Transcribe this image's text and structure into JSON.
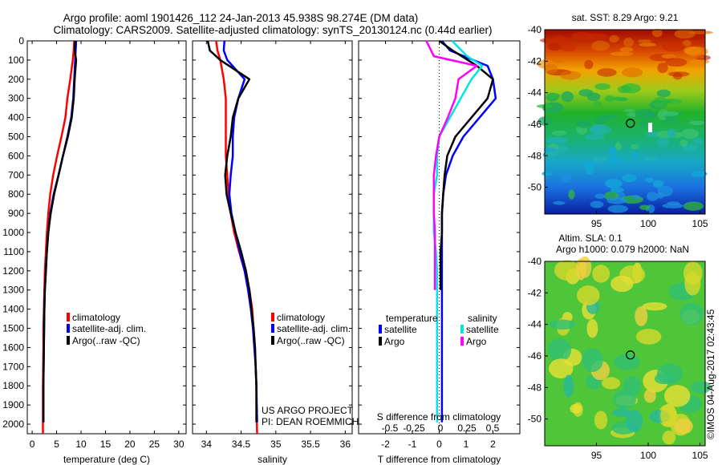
{
  "title": {
    "line1": "Argo profile: aoml 1901426_112 24-Jan-2013 45.938S 98.274E (DM data)",
    "line2": "Climatology: CARS2009. Satellite-adjusted climatology: synTS_20130124.nc (0.44d earlier)"
  },
  "depth_ticks": [
    0,
    100,
    200,
    300,
    400,
    500,
    600,
    700,
    800,
    900,
    1000,
    1100,
    1200,
    1300,
    1400,
    1500,
    1600,
    1700,
    1800,
    1900,
    2000
  ],
  "colors": {
    "climatology": "#ff0000",
    "satellite": "#0000ff",
    "argo": "#000000",
    "sat_salinity": "#00e5e5",
    "argo_salinity": "#ff00ff"
  },
  "chart_data": [
    {
      "id": "temperature",
      "type": "line",
      "xlabel": "temperature (deg C)",
      "xlim": [
        -1,
        31.5
      ],
      "ylim": [
        2050,
        0
      ],
      "xticks": [
        0,
        5,
        10,
        15,
        20,
        25,
        30
      ],
      "xtick_labels": [
        "0",
        "5",
        "10",
        "15",
        "20",
        "25",
        "30"
      ],
      "series": [
        {
          "name": "climatology",
          "color": "#ff0000",
          "x": [
            8.6,
            8.5,
            8.3,
            7.8,
            7.2,
            6.8,
            6.0,
            5.1,
            4.3,
            3.7,
            3.3,
            3.0,
            2.8,
            2.6,
            2.5,
            2.4,
            2.3,
            2.3,
            2.25,
            2.2,
            2.2,
            2.2
          ],
          "y": [
            0,
            50,
            100,
            200,
            300,
            400,
            500,
            600,
            700,
            800,
            900,
            1000,
            1100,
            1200,
            1300,
            1400,
            1500,
            1600,
            1700,
            1800,
            1900,
            2050
          ]
        },
        {
          "name": "satellite-adj. clim.",
          "color": "#0000ff",
          "x": [
            9.0,
            8.9,
            8.8,
            8.6,
            8.4,
            8.0,
            7.2,
            6.3,
            5.4,
            4.4,
            3.7,
            3.3,
            3.0,
            2.8,
            2.6,
            2.5,
            2.45,
            2.4,
            2.35,
            2.3,
            2.3
          ],
          "y": [
            0,
            50,
            100,
            200,
            300,
            400,
            500,
            600,
            700,
            800,
            900,
            1000,
            1100,
            1200,
            1300,
            1400,
            1500,
            1600,
            1700,
            1800,
            1990
          ]
        },
        {
          "name": "Argo(..raw -QC)",
          "color": "#000000",
          "x": [
            8.8,
            8.7,
            9.0,
            8.7,
            8.5,
            8.1,
            7.3,
            6.3,
            5.4,
            4.5,
            3.8,
            3.3,
            3.0,
            2.8,
            2.6,
            2.5,
            2.45,
            2.4,
            2.35,
            2.3,
            2.3
          ],
          "y": [
            0,
            50,
            100,
            200,
            300,
            400,
            500,
            600,
            700,
            800,
            900,
            1000,
            1100,
            1200,
            1300,
            1400,
            1500,
            1600,
            1700,
            1800,
            1990
          ]
        }
      ],
      "legend": [
        "climatology",
        "satellite-adj. clim.",
        "Argo(..raw -QC)"
      ]
    },
    {
      "id": "salinity",
      "type": "line",
      "xlabel": "salinity",
      "xlim": [
        33.8,
        36.1
      ],
      "ylim": [
        2050,
        0
      ],
      "xticks": [
        34,
        34.5,
        35,
        35.5,
        36
      ],
      "xtick_labels": [
        "34",
        "34.5",
        "35",
        "35.5",
        "36"
      ],
      "series": [
        {
          "name": "climatology",
          "color": "#ff0000",
          "x": [
            34.14,
            34.16,
            34.2,
            34.25,
            34.28,
            34.28,
            34.28,
            34.28,
            34.3,
            34.32,
            34.35,
            34.4,
            34.47,
            34.55,
            34.62,
            34.66,
            34.68,
            34.7,
            34.71,
            34.72,
            34.72,
            34.73
          ],
          "y": [
            0,
            50,
            100,
            200,
            300,
            400,
            500,
            600,
            700,
            800,
            900,
            1000,
            1100,
            1200,
            1300,
            1400,
            1500,
            1600,
            1700,
            1800,
            1900,
            2050
          ]
        },
        {
          "name": "satellite-adj. clim.",
          "color": "#0000ff",
          "x": [
            34.26,
            34.25,
            34.3,
            34.55,
            34.46,
            34.4,
            34.38,
            34.38,
            34.35,
            34.33,
            34.36,
            34.42,
            34.48,
            34.55,
            34.6,
            34.64,
            34.67,
            34.69,
            34.71,
            34.72,
            34.73
          ],
          "y": [
            0,
            50,
            100,
            200,
            300,
            400,
            500,
            600,
            700,
            800,
            900,
            1000,
            1100,
            1200,
            1300,
            1400,
            1500,
            1600,
            1700,
            1800,
            1990
          ]
        },
        {
          "name": "Argo(..raw -QC)",
          "color": "#000000",
          "x": [
            34.02,
            34.05,
            34.2,
            34.62,
            34.46,
            34.38,
            34.35,
            34.3,
            34.27,
            34.29,
            34.35,
            34.42,
            34.5,
            34.57,
            34.62,
            34.65,
            34.68,
            34.7,
            34.71,
            34.72,
            34.72
          ],
          "y": [
            0,
            50,
            100,
            200,
            300,
            400,
            500,
            600,
            700,
            800,
            900,
            1000,
            1100,
            1200,
            1300,
            1400,
            1500,
            1600,
            1700,
            1800,
            1990
          ]
        }
      ],
      "legend": [
        "climatology",
        "satellite-adj. clim.",
        "Argo(..raw -QC)"
      ],
      "annotation": [
        "US ARGO PROJECT",
        "PI: DEAN ROEMMICH"
      ]
    },
    {
      "id": "difference",
      "type": "line",
      "xlabel": "T difference from climatology",
      "top_label": "S difference from climatology",
      "xlim": [
        -3,
        3
      ],
      "ylim": [
        2050,
        0
      ],
      "xticks": [
        -2,
        -1,
        0,
        1,
        2
      ],
      "xtick_labels": [
        "-2",
        "-1",
        "0",
        "1",
        "2"
      ],
      "top_ticks": [
        -0.5,
        -0.25,
        0,
        0.25,
        0.5
      ],
      "top_tick_labels": [
        "-0.5",
        "-0.25",
        "0",
        "0.25",
        "0.5"
      ],
      "zero_line": true,
      "series": [
        {
          "name": "satellite",
          "group": "temperature",
          "color": "#0000ff",
          "x": [
            0.1,
            0.4,
            1.8,
            2.0,
            2.1,
            1.5,
            0.9,
            0.5,
            0.25,
            0.15,
            0.1,
            0.1,
            0.1,
            0.1,
            0.1,
            0.1,
            0.1,
            0.1,
            0.1,
            0.1,
            0.1
          ],
          "y": [
            0,
            50,
            130,
            200,
            300,
            400,
            500,
            600,
            700,
            800,
            900,
            1000,
            1100,
            1200,
            1300,
            1400,
            1500,
            1600,
            1700,
            1800,
            1990
          ]
        },
        {
          "name": "Argo",
          "group": "temperature",
          "color": "#000000",
          "x": [
            0,
            0.5,
            1.4,
            2.0,
            1.8,
            1.2,
            0.6,
            0.3,
            0.2,
            0.15,
            0.1,
            0.1,
            0.05,
            0.05,
            0.05
          ],
          "y": [
            0,
            50,
            130,
            200,
            300,
            400,
            500,
            600,
            700,
            800,
            900,
            1000,
            1100,
            1200,
            1300
          ]
        },
        {
          "name": "satellite",
          "group": "salinity",
          "color": "#00e5e5",
          "x": [
            0.12,
            0.26,
            0.4,
            0.3,
            0.2,
            0.1,
            0.0,
            -0.02,
            -0.02,
            -0.05,
            -0.05,
            -0.05,
            -0.03,
            -0.02,
            -0.02,
            -0.02,
            -0.02,
            -0.02,
            -0.02
          ],
          "y": [
            0,
            80,
            130,
            200,
            300,
            400,
            500,
            600,
            700,
            800,
            900,
            1000,
            1100,
            1200,
            1300,
            1400,
            1600,
            1800,
            1990
          ]
        },
        {
          "name": "Argo",
          "group": "salinity",
          "color": "#ff00ff",
          "x": [
            -0.12,
            -0.05,
            0.35,
            0.18,
            0.15,
            0.08,
            0.0,
            -0.03,
            -0.05,
            -0.05,
            -0.05,
            -0.04,
            -0.04,
            -0.04,
            -0.04
          ],
          "y": [
            0,
            80,
            130,
            200,
            300,
            400,
            500,
            600,
            700,
            800,
            900,
            1000,
            1100,
            1200,
            1300
          ]
        }
      ],
      "legend": {
        "temperature_title": "temperature",
        "salinity_title": "salinity",
        "items": [
          "satellite",
          "Argo",
          "satellite",
          "Argo"
        ]
      }
    },
    {
      "id": "sst_map",
      "type": "heatmap",
      "title": "sat. SST: 8.29 Argo: 9.21",
      "xlim": [
        90,
        105.5
      ],
      "ylim": [
        -51.7,
        -40
      ],
      "xticks": [
        95,
        100,
        105
      ],
      "yticks": [
        -40,
        -42,
        -44,
        -46,
        -48,
        -50
      ],
      "xtick_labels": [
        "95",
        "100",
        "105"
      ],
      "ytick_labels": [
        "-40",
        "-42",
        "-44",
        "-46",
        "-48",
        "-50"
      ],
      "float_position": {
        "lon": 98.274,
        "lat": -45.938
      }
    },
    {
      "id": "sla_map",
      "type": "heatmap",
      "title": [
        "Altim. SLA: 0.1",
        "Argo h1000: 0.079 h2000: NaN"
      ],
      "xlim": [
        90,
        105.5
      ],
      "ylim": [
        -51.7,
        -40
      ],
      "xticks": [
        95,
        100,
        105
      ],
      "yticks": [
        -40,
        -42,
        -44,
        -46,
        -48,
        -50
      ],
      "xtick_labels": [
        "95",
        "100",
        "105"
      ],
      "ytick_labels": [
        "-40",
        "-42",
        "-44",
        "-46",
        "-48",
        "-50"
      ],
      "float_position": {
        "lon": 98.274,
        "lat": -45.938
      }
    }
  ],
  "footer_credit": "©IMOS 04-Aug-2017 02:43:45"
}
